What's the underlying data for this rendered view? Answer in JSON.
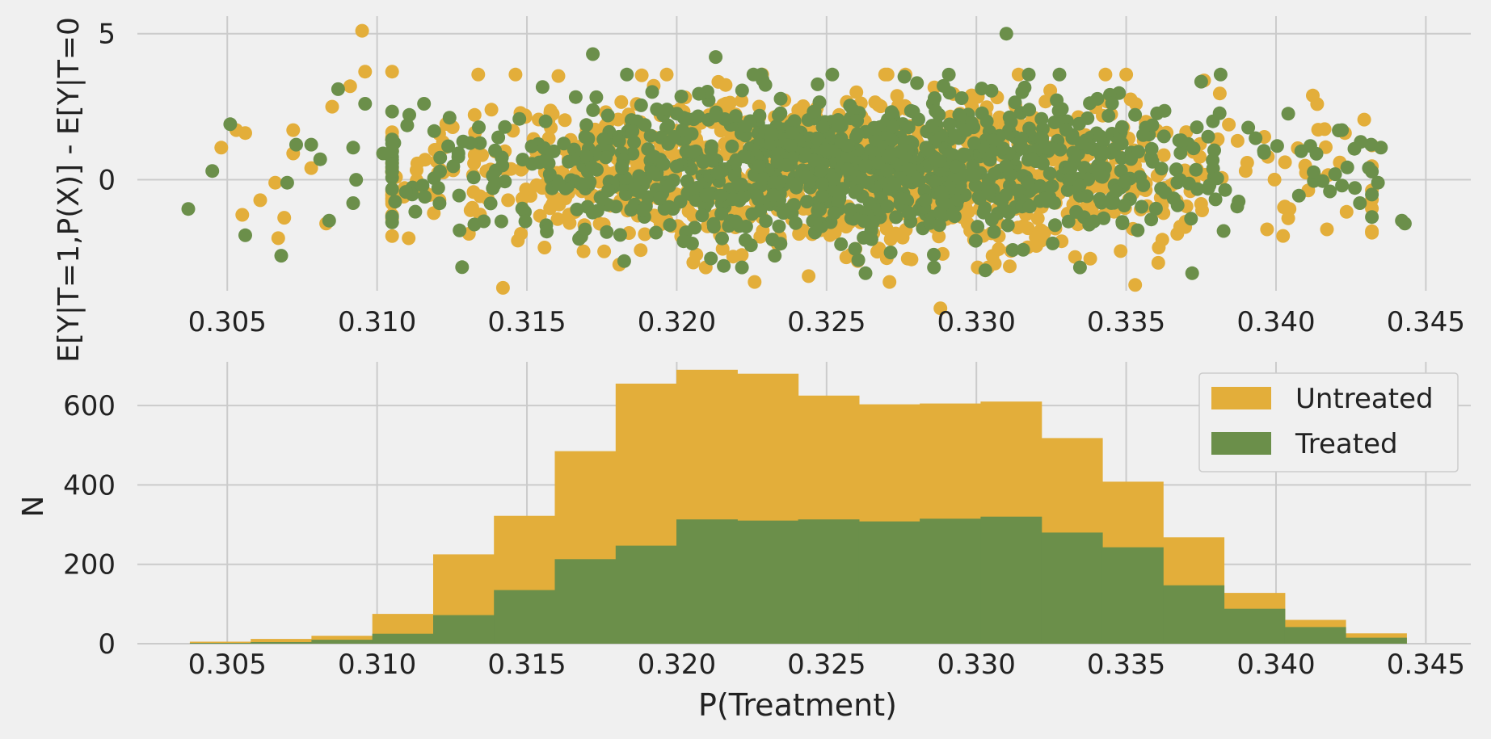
{
  "colors": {
    "background": "#f0f0f0",
    "grid": "#cbcbcb",
    "untreated": "#e3ae3a",
    "treated": "#6b8f4a",
    "text": "#222222"
  },
  "chart_data": [
    {
      "type": "scatter",
      "xlabel": "",
      "ylabel": "E[Y|T=1,P(X)] - E[Y|T=0",
      "xlim": [
        0.302,
        0.3465
      ],
      "ylim": [
        -3.8,
        5.6
      ],
      "xticks": [
        "0.305",
        "0.310",
        "0.315",
        "0.320",
        "0.325",
        "0.330",
        "0.335",
        "0.340",
        "0.345"
      ],
      "xtick_values": [
        0.305,
        0.31,
        0.315,
        0.32,
        0.325,
        0.33,
        0.335,
        0.34,
        0.345
      ],
      "yticks": [
        "0",
        "5"
      ],
      "ytick_values": [
        0,
        5
      ],
      "grid": true,
      "series": [
        {
          "color": "untreated",
          "outliers": [
            [
              0.3095,
              5.1
            ],
            [
              0.3096,
              3.7
            ],
            [
              0.3105,
              3.7
            ],
            [
              0.3085,
              2.5
            ],
            [
              0.3091,
              3.2
            ],
            [
              0.3053,
              1.7
            ],
            [
              0.3056,
              1.6
            ],
            [
              0.3048,
              1.1
            ],
            [
              0.3066,
              -0.1
            ],
            [
              0.3061,
              -0.7
            ],
            [
              0.3055,
              -1.2
            ],
            [
              0.3069,
              -1.3
            ],
            [
              0.3067,
              -2.0
            ],
            [
              0.3083,
              -1.5
            ],
            [
              0.3072,
              0.9
            ],
            [
              0.3072,
              1.7
            ],
            [
              0.3078,
              0.4
            ],
            [
              0.3288,
              -4.4
            ],
            [
              0.3142,
              -3.7
            ],
            [
              0.3226,
              -3.5
            ],
            [
              0.3271,
              -3.5
            ],
            [
              0.3353,
              -3.6
            ],
            [
              0.3244,
              -3.3
            ],
            [
              0.3376,
              3.4
            ],
            [
              0.335,
              3.6
            ],
            [
              0.3397,
              -1.7
            ],
            [
              0.3417,
              -1.7
            ],
            [
              0.3403,
              0.6
            ],
            [
              0.3423,
              1.6
            ]
          ],
          "seed": 11,
          "count": 1150,
          "center_x": 0.3255,
          "sd_x": 0.0068,
          "center_y": 0.3,
          "sd_y": 1.3
        },
        {
          "color": "treated",
          "outliers": [
            [
              0.3037,
              -1.0
            ],
            [
              0.3045,
              0.3
            ],
            [
              0.3051,
              1.9
            ],
            [
              0.3056,
              -1.9
            ],
            [
              0.3068,
              -2.6
            ],
            [
              0.307,
              -0.1
            ],
            [
              0.3073,
              1.2
            ],
            [
              0.3081,
              0.7
            ],
            [
              0.3078,
              1.2
            ],
            [
              0.3084,
              -1.4
            ],
            [
              0.3087,
              3.1
            ],
            [
              0.3092,
              1.1
            ],
            [
              0.3093,
              0.0
            ],
            [
              0.3092,
              -0.8
            ],
            [
              0.3096,
              2.6
            ],
            [
              0.3102,
              0.9
            ],
            [
              0.331,
              5.0
            ],
            [
              0.3172,
              4.3
            ],
            [
              0.3213,
              4.2
            ],
            [
              0.3434,
              -0.1
            ],
            [
              0.3443,
              -1.5
            ],
            [
              0.3435,
              1.1
            ],
            [
              0.3431,
              0.4
            ],
            [
              0.3442,
              -1.4
            ],
            [
              0.3428,
              -0.8
            ],
            [
              0.3372,
              -3.2
            ],
            [
              0.3263,
              -3.2
            ],
            [
              0.3303,
              -3.1
            ],
            [
              0.3418,
              -0.4
            ],
            [
              0.3422,
              -0.2
            ],
            [
              0.3422,
              1.7
            ]
          ],
          "seed": 23,
          "count": 1050,
          "center_x": 0.3255,
          "sd_x": 0.0068,
          "center_y": 0.4,
          "sd_y": 1.25
        }
      ]
    },
    {
      "type": "bar",
      "xlabel": "P(Treatment)",
      "ylabel": "N",
      "xlim": [
        0.302,
        0.3465
      ],
      "ylim": [
        0,
        710
      ],
      "xticks": [
        "0.305",
        "0.310",
        "0.315",
        "0.320",
        "0.325",
        "0.330",
        "0.335",
        "0.340",
        "0.345"
      ],
      "xtick_values": [
        0.305,
        0.31,
        0.315,
        0.32,
        0.325,
        0.33,
        0.335,
        0.34,
        0.345
      ],
      "yticks": [
        "0",
        "200",
        "400",
        "600"
      ],
      "ytick_values": [
        0,
        200,
        400,
        600
      ],
      "grid": true,
      "legend_position": "top-right",
      "bin_edges": [
        0.30375,
        0.30578,
        0.30781,
        0.30984,
        0.31187,
        0.3139,
        0.31593,
        0.31796,
        0.31999,
        0.32202,
        0.32405,
        0.32608,
        0.32811,
        0.33014,
        0.33217,
        0.3342,
        0.33623,
        0.33826,
        0.34029,
        0.34232,
        0.34435
      ],
      "series": [
        {
          "name": "Untreated",
          "color": "untreated",
          "values": [
            5,
            12,
            20,
            75,
            225,
            322,
            485,
            655,
            690,
            680,
            625,
            603,
            605,
            610,
            518,
            408,
            268,
            128,
            60,
            26
          ]
        },
        {
          "name": "Treated",
          "color": "treated",
          "values": [
            2,
            4,
            10,
            25,
            72,
            135,
            213,
            247,
            313,
            310,
            313,
            308,
            315,
            320,
            280,
            243,
            147,
            88,
            42,
            15
          ]
        }
      ]
    }
  ]
}
